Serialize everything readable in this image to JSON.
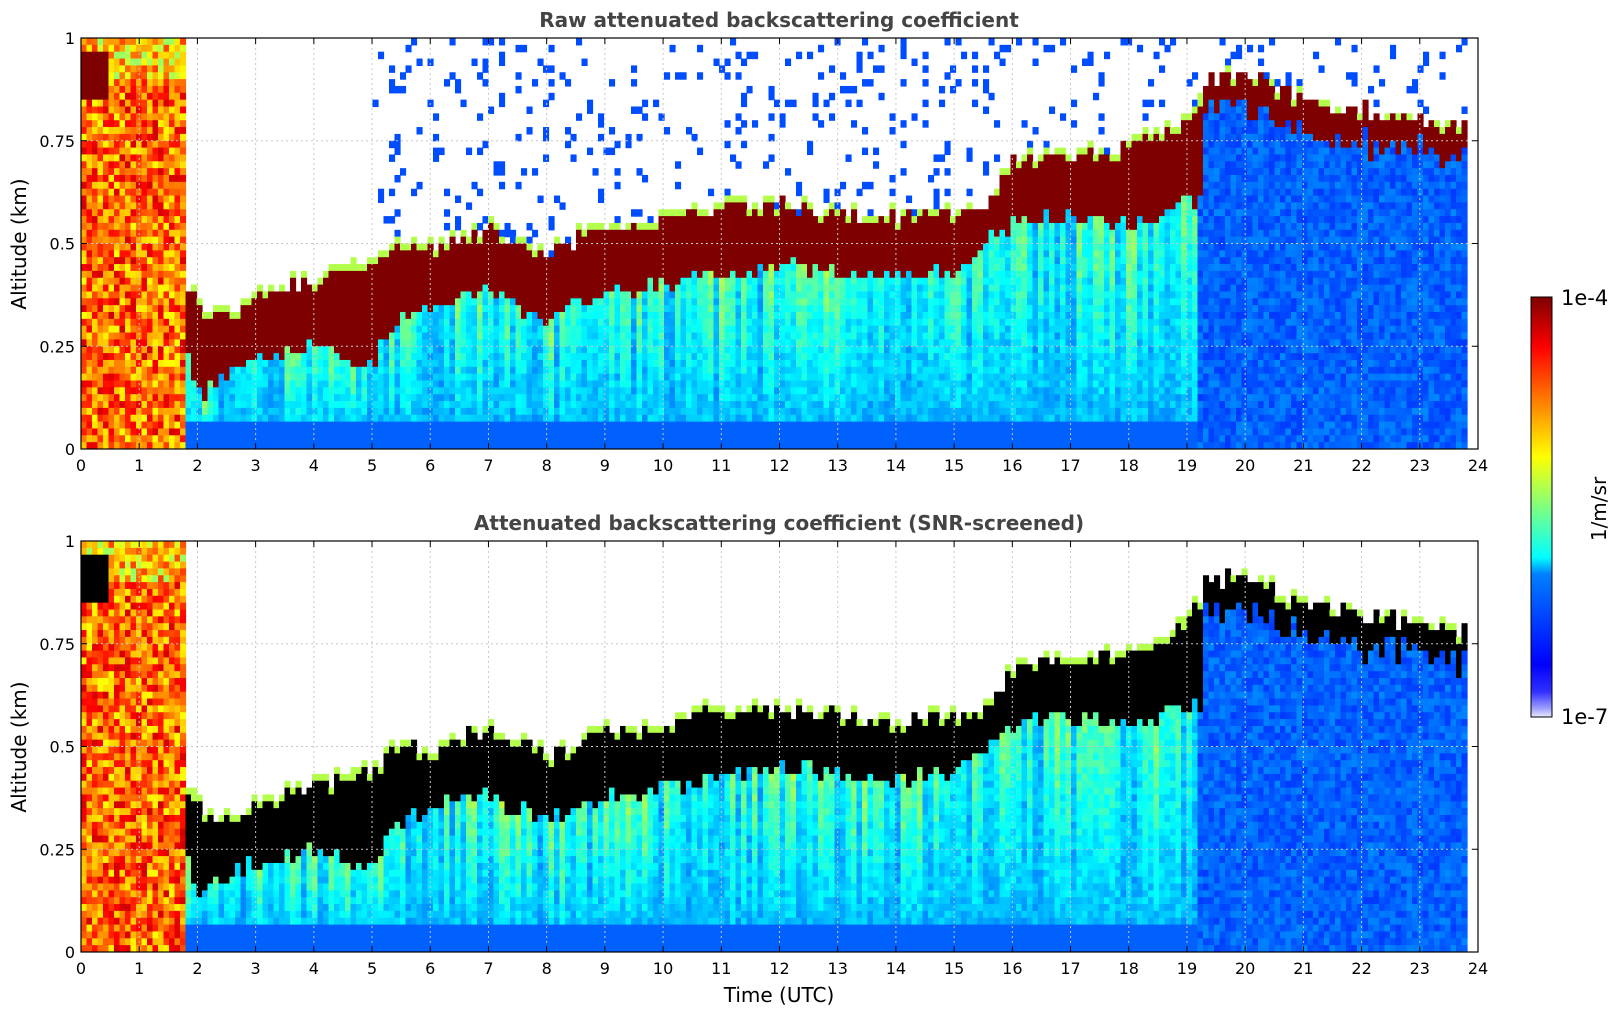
{
  "chart_data": [
    {
      "type": "heatmap",
      "title": "Raw attenuated backscattering coefficient",
      "xlabel": "",
      "ylabel": "Altitude (km)",
      "xlim": [
        0,
        24
      ],
      "ylim": [
        0,
        1
      ],
      "xticks": [
        "0",
        "1",
        "2",
        "3",
        "4",
        "5",
        "6",
        "7",
        "8",
        "9",
        "10",
        "11",
        "12",
        "13",
        "14",
        "15",
        "16",
        "17",
        "18",
        "19",
        "20",
        "21",
        "22",
        "23",
        "24"
      ],
      "yticks": [
        "0",
        "0.25",
        "0.5",
        "0.75",
        "1"
      ],
      "grid": true,
      "screened": false,
      "layer_top_km": {
        "time_utc": [
          0,
          1,
          1.7,
          2,
          2.5,
          3,
          4,
          5,
          5.3,
          6,
          7,
          8,
          9,
          10,
          11,
          12,
          13,
          14,
          15,
          15.5,
          16,
          17,
          18,
          19,
          19.3,
          20,
          21,
          22,
          23,
          23.8
        ],
        "altitude_km": [
          1.0,
          1.0,
          0.45,
          0.37,
          0.33,
          0.37,
          0.42,
          0.45,
          0.5,
          0.5,
          0.55,
          0.48,
          0.55,
          0.56,
          0.6,
          0.6,
          0.58,
          0.57,
          0.58,
          0.6,
          0.7,
          0.72,
          0.75,
          0.8,
          0.9,
          0.92,
          0.85,
          0.83,
          0.8,
          0.78
        ]
      },
      "layer_base_km": {
        "time_utc": [
          0,
          1,
          1.7,
          2,
          2.5,
          3,
          4,
          5,
          5.3,
          6,
          7,
          8,
          9,
          10,
          11,
          12,
          13,
          14,
          15,
          15.5,
          16,
          17,
          18,
          19
        ],
        "altitude_km": [
          0.9,
          0.9,
          0.3,
          0.13,
          0.18,
          0.22,
          0.25,
          0.2,
          0.3,
          0.35,
          0.38,
          0.32,
          0.38,
          0.4,
          0.42,
          0.45,
          0.43,
          0.42,
          0.43,
          0.5,
          0.55,
          0.57,
          0.55,
          0.6
        ]
      }
    },
    {
      "type": "heatmap",
      "title": "Attenuated backscattering coefficient (SNR-screened)",
      "xlabel": "Time (UTC)",
      "ylabel": "Altitude (km)",
      "xlim": [
        0,
        24
      ],
      "ylim": [
        0,
        1
      ],
      "xticks": [
        "0",
        "1",
        "2",
        "3",
        "4",
        "5",
        "6",
        "7",
        "8",
        "9",
        "10",
        "11",
        "12",
        "13",
        "14",
        "15",
        "16",
        "17",
        "18",
        "19",
        "20",
        "21",
        "22",
        "23",
        "24"
      ],
      "yticks": [
        "0",
        "0.25",
        "0.5",
        "0.75",
        "1"
      ],
      "grid": true,
      "screened": true
    }
  ],
  "colorbar": {
    "label": "1/m/sr",
    "max_label": "1e-4",
    "min_label": "1e-7",
    "colormap": "jet",
    "scale": "log"
  },
  "colors": {
    "title": "#444444",
    "grid": "#c8c8c8",
    "saturated_screened": "#000000",
    "dark_red": "#7f0000",
    "blue": "#0000ff"
  }
}
